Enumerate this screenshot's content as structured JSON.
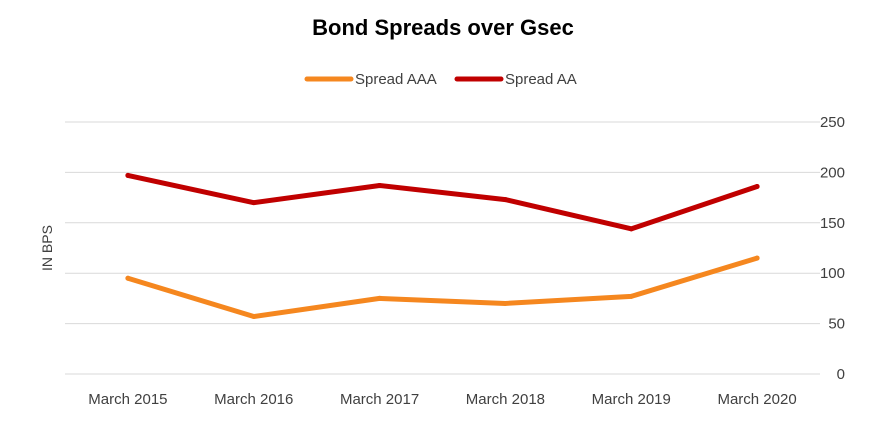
{
  "chart_data": {
    "type": "line",
    "title": "Bond Spreads over Gsec",
    "xlabel": "",
    "ylabel": "IN BPS",
    "categories": [
      "March 2015",
      "March 2016",
      "March 2017",
      "March 2018",
      "March 2019",
      "March 2020"
    ],
    "series": [
      {
        "name": "Spread AAA",
        "color": "#f5871f",
        "values": [
          95,
          57,
          75,
          70,
          77,
          115
        ]
      },
      {
        "name": "Spread AA",
        "color": "#c00000",
        "values": [
          197,
          170,
          187,
          173,
          144,
          186
        ]
      }
    ],
    "ylim": [
      0,
      250
    ],
    "yticks": [
      "0",
      "50",
      "100",
      "150",
      "200",
      "250"
    ],
    "y_axis_side": "right",
    "grid": true,
    "legend_position": "top-center"
  }
}
